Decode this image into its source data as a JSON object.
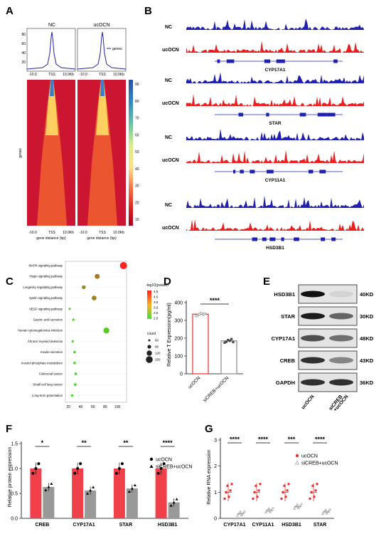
{
  "panels": {
    "A": "A",
    "B": "B",
    "C": "C",
    "D": "D",
    "E": "E",
    "F": "F",
    "G": "G"
  },
  "panelA": {
    "profile_titles": [
      "NC",
      "ucOCN"
    ],
    "legend_label": "genes",
    "profile_ticks": [
      "-10.0",
      "TSS",
      "10.0Kb"
    ],
    "y_ticks": [
      "20",
      "40",
      "60",
      "80"
    ],
    "heatmap_ylabel": "genes",
    "heatmap_ticks": [
      "-10.0",
      "TSS",
      "10.0Kb"
    ],
    "xlabel": "gene distance (bp)",
    "colorbar_ticks": [
      "90",
      "80",
      "70",
      "60",
      "50",
      "40",
      "30",
      "20",
      "10"
    ],
    "colorbar_colors": [
      "#a50026",
      "#d7191c",
      "#f46d43",
      "#fdae61",
      "#fee08b",
      "#ffffbf",
      "#d9ef8b",
      "#66bd63",
      "#1a9850",
      "#66c2a5",
      "#3288bd",
      "#5e4fa2"
    ]
  },
  "panelB": {
    "tracks": [
      {
        "gene": "CYP17A1",
        "nc": "NC",
        "uc": "ucOCN"
      },
      {
        "gene": "STAR",
        "nc": "NC",
        "uc": "ucOCN"
      },
      {
        "gene": "CYP11A1",
        "nc": "NC",
        "uc": "ucOCN"
      },
      {
        "gene": "HSD3B1",
        "nc": "NC",
        "uc": "ucOCN"
      }
    ],
    "nc_color": "#1f1fb4",
    "uc_color": "#ee1c1c"
  },
  "panelC": {
    "pathways": [
      {
        "name": "MAPK signaling pathway",
        "x": 110,
        "count": 150,
        "p": 4.6
      },
      {
        "name": "Hippo signaling pathway",
        "x": 67,
        "count": 100,
        "p": 3.4
      },
      {
        "name": "Longevity regulating pathway",
        "x": 45,
        "count": 70,
        "p": 3.2
      },
      {
        "name": "Apelin signaling pathway",
        "x": 62,
        "count": 90,
        "p": 3.3
      },
      {
        "name": "VEGF signaling pathway",
        "x": 22,
        "count": 30,
        "p": 2.4
      },
      {
        "name": "Gastric acid secretion",
        "x": 28,
        "count": 35,
        "p": 2.2
      },
      {
        "name": "Human cytomegalovirus infection",
        "x": 82,
        "count": 120,
        "p": 2.3
      },
      {
        "name": "Chronic myeloid leukemia",
        "x": 27,
        "count": 35,
        "p": 2.1
      },
      {
        "name": "Insulin secretion",
        "x": 30,
        "count": 40,
        "p": 2.1
      },
      {
        "name": "Inositol phosphate metabolism",
        "x": 30,
        "count": 40,
        "p": 2.1
      },
      {
        "name": "Colorectal cancer",
        "x": 32,
        "count": 45,
        "p": 2.0
      },
      {
        "name": "Small cell lung cancer",
        "x": 31,
        "count": 42,
        "p": 2.0
      },
      {
        "name": "Long-term potentiation",
        "x": 26,
        "count": 35,
        "p": 2.0
      }
    ],
    "x_ticks": [
      "20",
      "40",
      "60",
      "80",
      "100"
    ],
    "legend_title": "-log10(pvalue)",
    "legend_ticks": [
      "4.5",
      "4.0",
      "3.5",
      "3.0",
      "2.5",
      "2.0"
    ],
    "count_title": "count",
    "count_items": [
      "60",
      "90",
      "120",
      "150"
    ]
  },
  "panelD": {
    "ylabel": "Relative T Expression(pg/ml)",
    "y_ticks": [
      "0",
      "100",
      "200",
      "300",
      "400"
    ],
    "ylim": [
      0,
      400
    ],
    "bars": [
      {
        "label": "ucOCN",
        "value": 335,
        "color": "#e83030",
        "points": [
          325,
          330,
          335,
          340,
          333,
          338
        ]
      },
      {
        "label": "siCREB+ucOCN",
        "value": 185,
        "color": "#888888",
        "points": [
          175,
          180,
          190,
          185,
          195,
          178
        ]
      }
    ],
    "sig": "****"
  },
  "panelE": {
    "proteins": [
      {
        "name": "HSD3B1",
        "kd": "40KD"
      },
      {
        "name": "STAR",
        "kd": "30KD"
      },
      {
        "name": "CYP17A1",
        "kd": "48KD"
      },
      {
        "name": "CREB",
        "kd": "43KD"
      },
      {
        "name": "GAPDH",
        "kd": "36KD"
      }
    ],
    "lanes": [
      "ucOCN",
      "siCREB +ucOCN"
    ]
  },
  "panelF": {
    "ylabel": "Relative protein expression",
    "y_ticks": [
      "0.0",
      "0.5",
      "1.0",
      "1.5"
    ],
    "ylim": [
      0,
      1.5
    ],
    "categories": [
      "CREB",
      "CYP17A1",
      "STAR",
      "HSD3B1"
    ],
    "series": [
      {
        "name": "ucOCN",
        "values": [
          1.0,
          1.0,
          1.0,
          1.0
        ],
        "color": "#f0404a"
      },
      {
        "name": "siCREB+ucOCN",
        "values": [
          0.63,
          0.56,
          0.6,
          0.32
        ],
        "color": "#999999"
      }
    ],
    "sig": [
      "*",
      "**",
      "**",
      "****"
    ]
  },
  "panelG": {
    "ylabel": "Relative RNA expression",
    "y_ticks": [
      "0",
      "1",
      "2",
      "3"
    ],
    "ylim": [
      0,
      3
    ],
    "categories": [
      "CYP17A1",
      "CYP11A1",
      "HSD3B1",
      "STAR"
    ],
    "series": [
      {
        "name": "ucOCN",
        "values": [
          1.0,
          1.0,
          1.0,
          1.0
        ],
        "color": "#f03030"
      },
      {
        "name": "siCREB+ucOCN",
        "values": [
          0.18,
          0.3,
          0.45,
          0.25
        ],
        "color": "#999999"
      }
    ],
    "sig": [
      "****",
      "****",
      "***",
      "****"
    ]
  }
}
